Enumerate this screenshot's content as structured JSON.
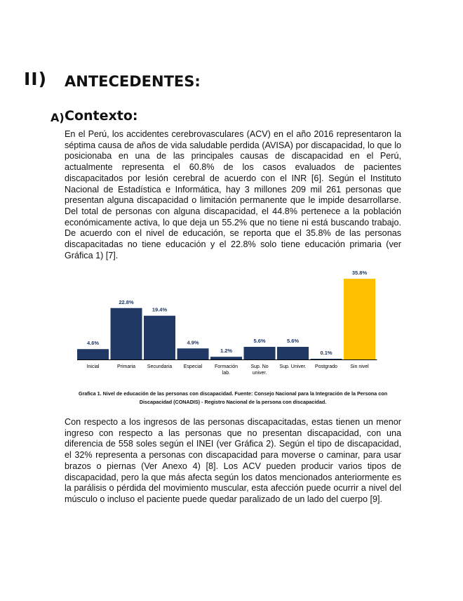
{
  "section": {
    "number": "II)",
    "title": "ANTECEDENTES:"
  },
  "subsection": {
    "letter": "A)",
    "title": "Contexto:"
  },
  "paragraph1": "En el Perú, los accidentes cerebrovasculares (ACV) en el año 2016 representaron la séptima causa de años de vida saludable perdida (AVISA) por discapacidad, lo que lo posicionaba en una de las principales causas de discapacidad en el Perú, actualmente representa el 60.8% de los casos evaluados de pacientes discapacitados por lesión cerebral de acuerdo con el INR [6]. Según el Instituto Nacional de Estadística e Informática, hay 3 millones 209 mil 261 personas que presentan alguna discapacidad o limitación permanente que le impide desarrollarse. Del total de personas con alguna discapacidad, el 44.8% pertenece a la población económicamente activa, lo que deja un 55.2% que no tiene ni está buscando trabajo. De acuerdo con el nivel de educación, se reporta que el 35.8% de las personas discapacitadas no tiene educación y el 22.8% solo tiene educación primaria (ver Gráfica 1) [7].",
  "paragraph2": "Con respecto a los ingresos de las personas discapacitadas, estas tienen un menor ingreso con respecto a las personas que no presentan discapacidad, con una diferencia de 558 soles según el INEI (ver Gráfica 2). Según el tipo de discapacidad, el 32% representa a personas con discapacidad para moverse o caminar, para usar brazos o piernas (Ver Anexo 4) [8]. Los ACV pueden producir varios tipos de discapacidad, pero la que más afecta según los datos mencionados anteriormente es la parálisis o pérdida del movimiento muscular, esta afección puede ocurrir a nivel del músculo o incluso el paciente puede quedar paralizado de un lado del cuerpo [9].",
  "caption": {
    "line1": "Grafica 1. Nivel de educación de las personas con discapacidad. Fuente: Consejo Nacional para la Integración de la Persona con",
    "line2": "Discapacidad (CONADIS) - Registro Nacional de la persona con discapacidad."
  },
  "chart_data": {
    "type": "bar",
    "categories": [
      [
        "Inicial"
      ],
      [
        "Primaria"
      ],
      [
        "Secundaria"
      ],
      [
        "Especial"
      ],
      [
        "Formación",
        "lab."
      ],
      [
        "Sup. No",
        "univer."
      ],
      [
        "Sup. Univer."
      ],
      [
        "Postgrado"
      ],
      [
        "Sin nivel"
      ]
    ],
    "values": [
      4.6,
      22.8,
      19.4,
      4.9,
      1.2,
      5.6,
      5.6,
      0.1,
      35.8
    ],
    "value_labels": [
      "4.6%",
      "22.8%",
      "19.4%",
      "4.9%",
      "1.2%",
      "5.6%",
      "5.6%",
      "0.1%",
      "35.8%"
    ],
    "ylim": [
      0,
      35.8
    ],
    "grid": false,
    "colors": {
      "default": "#1f3864",
      "highlight": "#ffc000",
      "label": "#1f3864"
    },
    "highlight_index": 8
  }
}
